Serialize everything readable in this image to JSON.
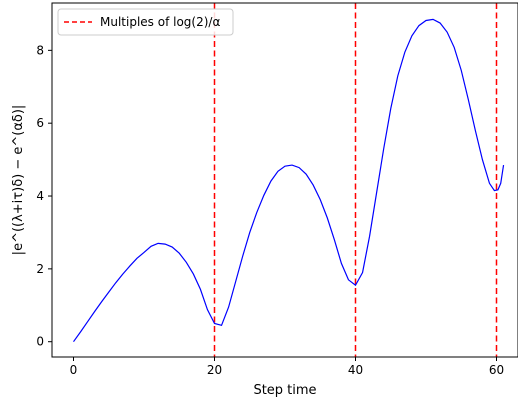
{
  "chart_data": {
    "type": "line",
    "xlabel": "Step time",
    "ylabel": "|e^((λ+iτ)δ) − e^(αδ)|",
    "xlim": [
      -3.05,
      63.05
    ],
    "ylim": [
      -0.42,
      9.3
    ],
    "xticks": [
      0,
      20,
      40,
      60
    ],
    "yticks": [
      0,
      2,
      4,
      6,
      8
    ],
    "grid": false,
    "legend": {
      "placement": "top-left",
      "entries": [
        {
          "label": "Multiples of log(2)/α",
          "style": "dashed",
          "color": "#ff0000"
        }
      ]
    },
    "series": [
      {
        "color": "#0000ff",
        "points": [
          [
            0,
            0.0
          ],
          [
            1,
            0.27
          ],
          [
            2,
            0.55
          ],
          [
            3,
            0.83
          ],
          [
            4,
            1.1
          ],
          [
            5,
            1.36
          ],
          [
            6,
            1.62
          ],
          [
            7,
            1.86
          ],
          [
            8,
            2.08
          ],
          [
            9,
            2.29
          ],
          [
            10,
            2.45
          ],
          [
            11,
            2.62
          ],
          [
            12,
            2.7
          ],
          [
            13,
            2.68
          ],
          [
            14,
            2.6
          ],
          [
            15,
            2.43
          ],
          [
            16,
            2.18
          ],
          [
            17,
            1.86
          ],
          [
            18,
            1.44
          ],
          [
            19,
            0.88
          ],
          [
            20,
            0.5
          ],
          [
            21,
            0.45
          ],
          [
            22,
            0.95
          ],
          [
            23,
            1.65
          ],
          [
            24,
            2.35
          ],
          [
            25,
            3.0
          ],
          [
            26,
            3.55
          ],
          [
            27,
            4.02
          ],
          [
            28,
            4.41
          ],
          [
            29,
            4.68
          ],
          [
            30,
            4.82
          ],
          [
            31,
            4.85
          ],
          [
            32,
            4.78
          ],
          [
            33,
            4.6
          ],
          [
            34,
            4.3
          ],
          [
            35,
            3.9
          ],
          [
            36,
            3.4
          ],
          [
            37,
            2.8
          ],
          [
            38,
            2.15
          ],
          [
            39,
            1.7
          ],
          [
            40,
            1.55
          ],
          [
            41,
            1.9
          ],
          [
            42,
            2.9
          ],
          [
            43,
            4.1
          ],
          [
            44,
            5.3
          ],
          [
            45,
            6.4
          ],
          [
            46,
            7.3
          ],
          [
            47,
            7.95
          ],
          [
            48,
            8.4
          ],
          [
            49,
            8.68
          ],
          [
            50,
            8.82
          ],
          [
            51,
            8.85
          ],
          [
            52,
            8.75
          ],
          [
            53,
            8.5
          ],
          [
            54,
            8.08
          ],
          [
            55,
            7.45
          ],
          [
            56,
            6.65
          ],
          [
            57,
            5.8
          ],
          [
            58,
            5.0
          ],
          [
            59,
            4.35
          ],
          [
            59.7,
            4.15
          ],
          [
            60.2,
            4.17
          ],
          [
            60.6,
            4.35
          ],
          [
            61,
            4.85
          ]
        ]
      }
    ],
    "vlines": {
      "x": [
        20,
        40,
        60
      ],
      "color": "#ff0000",
      "style": "dashed"
    }
  }
}
